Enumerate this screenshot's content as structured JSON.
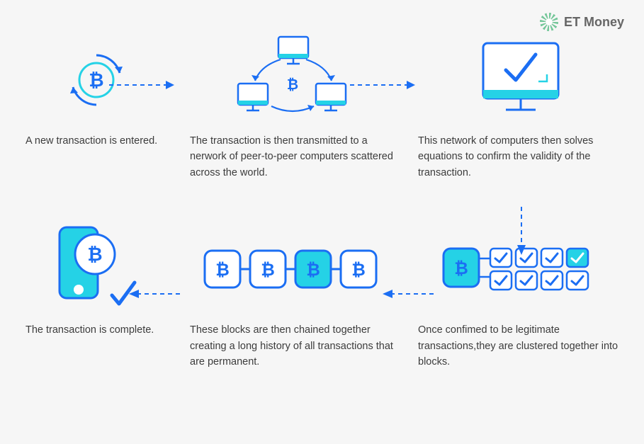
{
  "brand": {
    "name": "ET Money"
  },
  "colors": {
    "background": "#f6f6f6",
    "primary": "#1b6ef3",
    "cyan": "#25d2e6",
    "text": "#3c3c3c"
  },
  "diagram": {
    "type": "flowchart",
    "btc_symbol": "₿",
    "steps": [
      {
        "id": 1,
        "caption": "A new transaction is entered."
      },
      {
        "id": 2,
        "caption": "The transaction is then transmitted to a nerwork of peer-to-peer computers scattered across the world."
      },
      {
        "id": 3,
        "caption": "This network of computers then solves equations to confirm the validity of the transaction."
      },
      {
        "id": 4,
        "caption": "Once confimed to be legitimate transactions,they are clustered together into blocks."
      },
      {
        "id": 5,
        "caption": "These blocks are then chained together creating a long history of all transactions that are permanent."
      },
      {
        "id": 6,
        "caption": "The transaction is complete."
      }
    ],
    "edges": [
      {
        "from": 1,
        "to": 2
      },
      {
        "from": 2,
        "to": 3
      },
      {
        "from": 3,
        "to": 4
      },
      {
        "from": 4,
        "to": 5
      },
      {
        "from": 5,
        "to": 6
      }
    ]
  }
}
